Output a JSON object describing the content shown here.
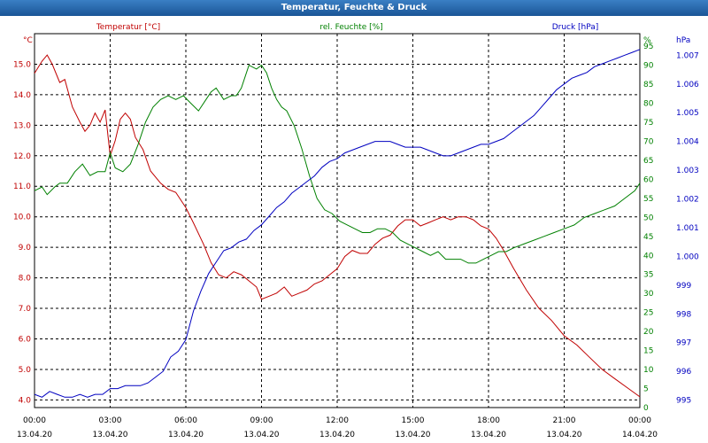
{
  "chart_data": {
    "type": "line",
    "title": "Temperatur, Feuchte & Druck",
    "x_ticks": [
      {
        "time": "00:00",
        "date": "13.04.20"
      },
      {
        "time": "03:00",
        "date": "13.04.20"
      },
      {
        "time": "06:00",
        "date": "13.04.20"
      },
      {
        "time": "09:00",
        "date": "13.04.20"
      },
      {
        "time": "12:00",
        "date": "13.04.20"
      },
      {
        "time": "15:00",
        "date": "13.04.20"
      },
      {
        "time": "18:00",
        "date": "13.04.20"
      },
      {
        "time": "21:00",
        "date": "13.04.20"
      },
      {
        "time": "00:00",
        "date": "14.04.20"
      }
    ],
    "x_range_hours": [
      0,
      24
    ],
    "grid": true,
    "axes": {
      "temperature": {
        "unit_label": "°C",
        "header": "Temperatur [°C]",
        "ylim": [
          3.75,
          16.0
        ],
        "ticks": [
          "4.0",
          "5.0",
          "6.0",
          "7.0",
          "8.0",
          "9.0",
          "10.0",
          "11.0",
          "12.0",
          "13.0",
          "14.0",
          "15.0"
        ],
        "color": "#c00000"
      },
      "humidity": {
        "unit_label": "%",
        "header": "rel. Feuchte [%]",
        "ylim": [
          0,
          98.3
        ],
        "ticks": [
          "0",
          "5",
          "10",
          "15",
          "20",
          "25",
          "30",
          "35",
          "40",
          "45",
          "50",
          "55",
          "60",
          "65",
          "70",
          "75",
          "80",
          "85",
          "90",
          "95"
        ],
        "color": "#008000"
      },
      "pressure": {
        "unit_label": "hPa",
        "header": "Druck [hPa]",
        "ylim": [
          994.74,
          1007.75
        ],
        "ticks": [
          "995",
          "996",
          "997",
          "998",
          "999",
          "1.000",
          "1.001",
          "1.002",
          "1.003",
          "1.004",
          "1.005",
          "1.006",
          "1.007"
        ],
        "color": "#0000c0"
      }
    },
    "series": [
      {
        "name": "Temperatur",
        "axis": "temperature",
        "color": "#c00000",
        "x": [
          0,
          0.3,
          0.5,
          0.7,
          1.0,
          1.2,
          1.5,
          1.8,
          2.0,
          2.2,
          2.4,
          2.6,
          2.8,
          3.0,
          3.2,
          3.4,
          3.6,
          3.8,
          4.0,
          4.3,
          4.6,
          5.0,
          5.3,
          5.6,
          6.0,
          6.3,
          6.7,
          7.0,
          7.3,
          7.6,
          7.9,
          8.2,
          8.5,
          8.8,
          9.0,
          9.3,
          9.6,
          9.9,
          10.2,
          10.5,
          10.8,
          11.1,
          11.4,
          11.7,
          12.0,
          12.3,
          12.6,
          12.9,
          13.2,
          13.5,
          13.8,
          14.1,
          14.4,
          14.7,
          15.0,
          15.3,
          15.6,
          15.9,
          16.2,
          16.5,
          16.8,
          17.1,
          17.4,
          17.7,
          18.0,
          18.3,
          18.6,
          19.0,
          19.5,
          20.0,
          20.5,
          21.0,
          21.5,
          22.0,
          22.5,
          23.0,
          23.5,
          24.0
        ],
        "values": [
          14.7,
          15.1,
          15.3,
          15.0,
          14.4,
          14.5,
          13.6,
          13.1,
          12.8,
          13.0,
          13.4,
          13.1,
          13.5,
          12.0,
          12.5,
          13.2,
          13.4,
          13.2,
          12.6,
          12.2,
          11.5,
          11.1,
          10.9,
          10.8,
          10.3,
          9.8,
          9.1,
          8.5,
          8.1,
          8.0,
          8.2,
          8.1,
          7.9,
          7.7,
          7.3,
          7.4,
          7.5,
          7.7,
          7.4,
          7.5,
          7.6,
          7.8,
          7.9,
          8.1,
          8.3,
          8.7,
          8.9,
          8.8,
          8.8,
          9.1,
          9.3,
          9.4,
          9.7,
          9.9,
          9.9,
          9.7,
          9.8,
          9.9,
          10.0,
          9.9,
          10.0,
          10.0,
          9.9,
          9.7,
          9.6,
          9.3,
          8.9,
          8.3,
          7.6,
          7.0,
          6.6,
          6.1,
          5.8,
          5.4,
          5.0,
          4.7,
          4.4,
          4.1
        ]
      },
      {
        "name": "rel. Feuchte",
        "axis": "humidity",
        "color": "#008000",
        "x": [
          0,
          0.3,
          0.5,
          0.8,
          1.0,
          1.3,
          1.6,
          1.9,
          2.2,
          2.5,
          2.8,
          3.0,
          3.2,
          3.5,
          3.8,
          4.1,
          4.4,
          4.7,
          5.0,
          5.3,
          5.6,
          5.9,
          6.2,
          6.5,
          6.8,
          7.0,
          7.2,
          7.5,
          7.8,
          8.0,
          8.2,
          8.5,
          8.8,
          9.0,
          9.2,
          9.4,
          9.6,
          9.8,
          10.0,
          10.3,
          10.6,
          10.9,
          11.2,
          11.5,
          11.8,
          12.1,
          12.4,
          12.7,
          13.0,
          13.3,
          13.6,
          13.9,
          14.2,
          14.5,
          14.8,
          15.1,
          15.4,
          15.7,
          16.0,
          16.3,
          16.6,
          16.9,
          17.2,
          17.5,
          17.8,
          18.1,
          18.4,
          18.7,
          19.0,
          19.4,
          19.8,
          20.2,
          20.6,
          21.0,
          21.4,
          21.8,
          22.2,
          22.6,
          23.0,
          23.4,
          23.8,
          24.0
        ],
        "values": [
          57,
          58,
          56,
          58,
          59,
          59,
          62,
          64,
          61,
          62,
          62,
          67,
          63,
          62,
          64,
          69,
          75,
          79,
          81,
          82,
          81,
          82,
          80,
          78,
          81,
          83,
          84,
          81,
          82,
          82,
          84,
          90,
          89,
          90,
          88,
          84,
          81,
          79,
          78,
          74,
          68,
          61,
          55,
          52,
          51,
          49,
          48,
          47,
          46,
          46,
          47,
          47,
          46,
          44,
          43,
          42,
          41,
          40,
          41,
          39,
          39,
          39,
          38,
          38,
          39,
          40,
          41,
          41,
          42,
          43,
          44,
          45,
          46,
          47,
          48,
          50,
          51,
          52,
          53,
          55,
          57,
          59
        ]
      },
      {
        "name": "Druck",
        "axis": "pressure",
        "color": "#0000c0",
        "x": [
          0,
          0.3,
          0.6,
          0.9,
          1.2,
          1.5,
          1.8,
          2.1,
          2.4,
          2.7,
          3.0,
          3.3,
          3.6,
          3.9,
          4.2,
          4.5,
          4.8,
          5.1,
          5.4,
          5.7,
          6.0,
          6.3,
          6.6,
          6.9,
          7.2,
          7.5,
          7.8,
          8.1,
          8.4,
          8.7,
          9.0,
          9.3,
          9.6,
          9.9,
          10.2,
          10.5,
          10.8,
          11.1,
          11.4,
          11.7,
          12.0,
          12.3,
          12.6,
          12.9,
          13.2,
          13.5,
          13.8,
          14.1,
          14.4,
          14.7,
          15.0,
          15.3,
          15.6,
          15.9,
          16.2,
          16.5,
          16.8,
          17.1,
          17.4,
          17.7,
          18.0,
          18.3,
          18.6,
          18.9,
          19.2,
          19.5,
          19.8,
          20.1,
          20.4,
          20.7,
          21.0,
          21.3,
          21.6,
          21.9,
          22.2,
          22.5,
          22.8,
          23.1,
          23.4,
          23.7,
          24.0
        ],
        "values": [
          995.2,
          995.1,
          995.3,
          995.2,
          995.1,
          995.1,
          995.2,
          995.1,
          995.2,
          995.2,
          995.4,
          995.4,
          995.5,
          995.5,
          995.5,
          995.6,
          995.8,
          996.0,
          996.5,
          996.7,
          997.1,
          998.1,
          998.8,
          999.4,
          999.8,
          1000.2,
          1000.3,
          1000.5,
          1000.6,
          1000.9,
          1001.1,
          1001.4,
          1001.7,
          1001.9,
          1002.2,
          1002.4,
          1002.6,
          1002.8,
          1003.1,
          1003.3,
          1003.4,
          1003.6,
          1003.7,
          1003.8,
          1003.9,
          1004.0,
          1004.0,
          1004.0,
          1003.9,
          1003.8,
          1003.8,
          1003.8,
          1003.7,
          1003.6,
          1003.5,
          1003.5,
          1003.6,
          1003.7,
          1003.8,
          1003.9,
          1003.9,
          1004.0,
          1004.1,
          1004.3,
          1004.5,
          1004.7,
          1004.9,
          1005.2,
          1005.5,
          1005.8,
          1006.0,
          1006.2,
          1006.3,
          1006.4,
          1006.6,
          1006.7,
          1006.8,
          1006.9,
          1007.0,
          1007.1,
          1007.2
        ]
      }
    ]
  }
}
